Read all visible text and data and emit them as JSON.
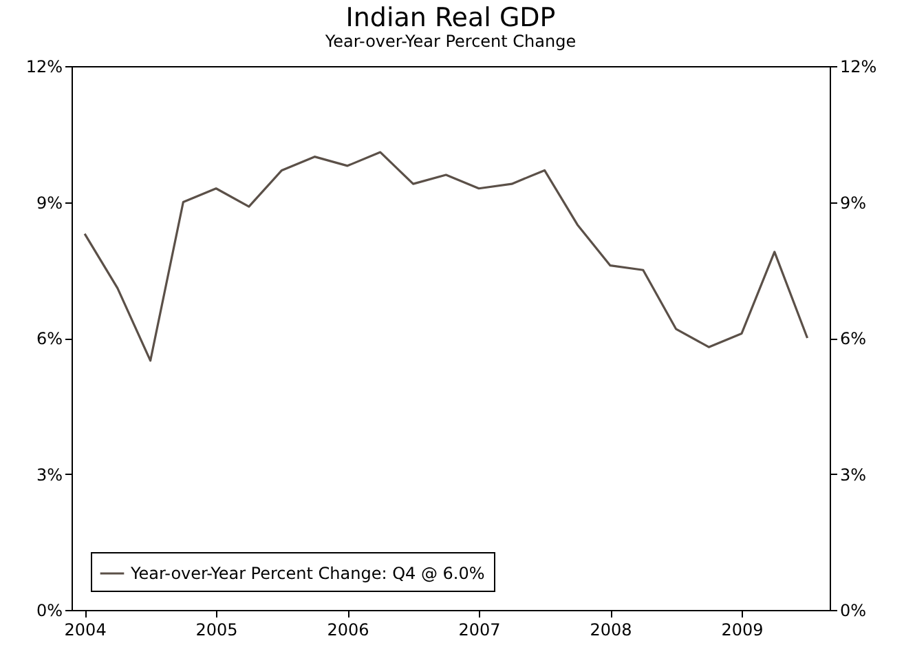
{
  "chart_data": {
    "type": "line",
    "title": "Indian Real GDP",
    "subtitle": "Year-over-Year Percent Change",
    "x": [
      2004,
      2004.25,
      2004.5,
      2004.75,
      2005,
      2005.25,
      2005.5,
      2005.75,
      2006,
      2006.25,
      2006.5,
      2006.75,
      2007,
      2007.25,
      2007.5,
      2007.75,
      2008,
      2008.25,
      2008.5,
      2008.75,
      2009,
      2009.25,
      2009.5
    ],
    "series": [
      {
        "name": "Year-over-Year Percent Change: Q4 @ 6.0%",
        "color": "#5b5048",
        "values": [
          8.3,
          7.1,
          5.5,
          9.0,
          9.3,
          8.9,
          9.7,
          10.0,
          9.8,
          10.1,
          9.4,
          9.6,
          9.3,
          9.4,
          9.7,
          8.5,
          7.6,
          7.5,
          6.2,
          5.8,
          6.1,
          7.9,
          6.0
        ]
      }
    ],
    "xlim": [
      2003.9,
      2009.67
    ],
    "xticks": [
      2004,
      2005,
      2006,
      2007,
      2008,
      2009
    ],
    "ylim": [
      0,
      12
    ],
    "yticks": [
      {
        "value": 0,
        "label": "0%"
      },
      {
        "value": 3,
        "label": "3%"
      },
      {
        "value": 6,
        "label": "6%"
      },
      {
        "value": 9,
        "label": "9%"
      },
      {
        "value": 12,
        "label": "12%"
      }
    ],
    "y2lim": [
      0,
      12
    ],
    "y2ticks": [
      {
        "value": 0,
        "label": "0%"
      },
      {
        "value": 3,
        "label": "3%"
      },
      {
        "value": 6,
        "label": "6%"
      },
      {
        "value": 9,
        "label": "9%"
      },
      {
        "value": 12,
        "label": "12%"
      }
    ],
    "legend": "bottom left",
    "grid": false,
    "marker": "none",
    "line_style": "solid"
  }
}
